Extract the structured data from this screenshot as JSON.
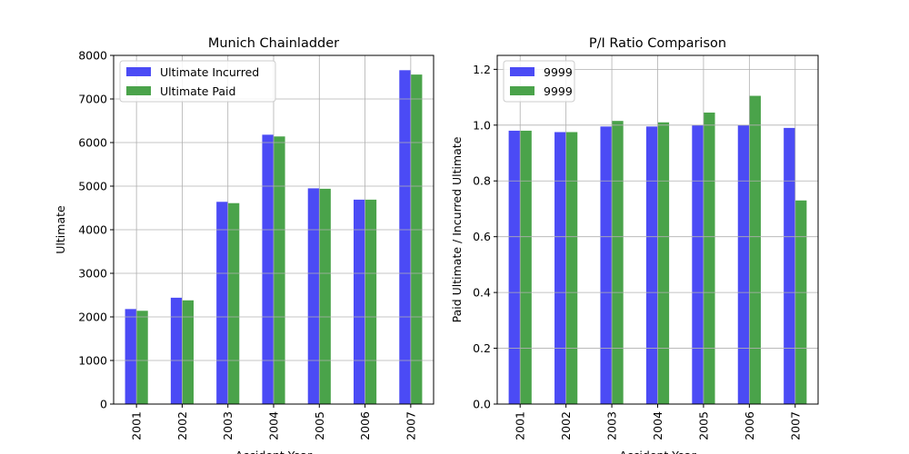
{
  "chart_data": [
    {
      "type": "bar",
      "title": "Munich Chainladder",
      "xlabel": "Accident Year",
      "ylabel": "Ultimate",
      "categories": [
        "2001",
        "2002",
        "2003",
        "2004",
        "2005",
        "2006",
        "2007"
      ],
      "ylim": [
        0,
        8000
      ],
      "yticks": [
        0,
        1000,
        2000,
        3000,
        4000,
        5000,
        6000,
        7000,
        8000
      ],
      "ytick_labels": [
        "0",
        "1000",
        "2000",
        "3000",
        "4000",
        "5000",
        "6000",
        "7000",
        "8000"
      ],
      "grid": true,
      "legend_position": "top-left",
      "series": [
        {
          "name": "Ultimate Incurred",
          "color": "#4b4bf5",
          "values": [
            2180,
            2440,
            4640,
            6180,
            4950,
            4690,
            7660
          ]
        },
        {
          "name": "Ultimate Paid",
          "color": "#4aa34a",
          "values": [
            2140,
            2380,
            4610,
            6140,
            4940,
            4690,
            7560
          ]
        }
      ]
    },
    {
      "type": "bar",
      "title": "P/I Ratio Comparison",
      "xlabel": "Accident Year",
      "ylabel": "Paid Ultimate / Incurred Ultimate",
      "categories": [
        "2001",
        "2002",
        "2003",
        "2004",
        "2005",
        "2006",
        "2007"
      ],
      "ylim": [
        0,
        1.25
      ],
      "yticks": [
        0.0,
        0.2,
        0.4,
        0.6,
        0.8,
        1.0,
        1.2
      ],
      "ytick_labels": [
        "0.0",
        "0.2",
        "0.4",
        "0.6",
        "0.8",
        "1.0",
        "1.2"
      ],
      "grid": true,
      "legend_position": "top-left",
      "series": [
        {
          "name": "9999",
          "color": "#4b4bf5",
          "values": [
            0.98,
            0.975,
            0.995,
            0.995,
            1.0,
            1.0,
            0.99
          ]
        },
        {
          "name": "9999",
          "color": "#4aa34a",
          "values": [
            0.98,
            0.975,
            1.015,
            1.01,
            1.045,
            1.105,
            0.73
          ]
        }
      ]
    }
  ]
}
